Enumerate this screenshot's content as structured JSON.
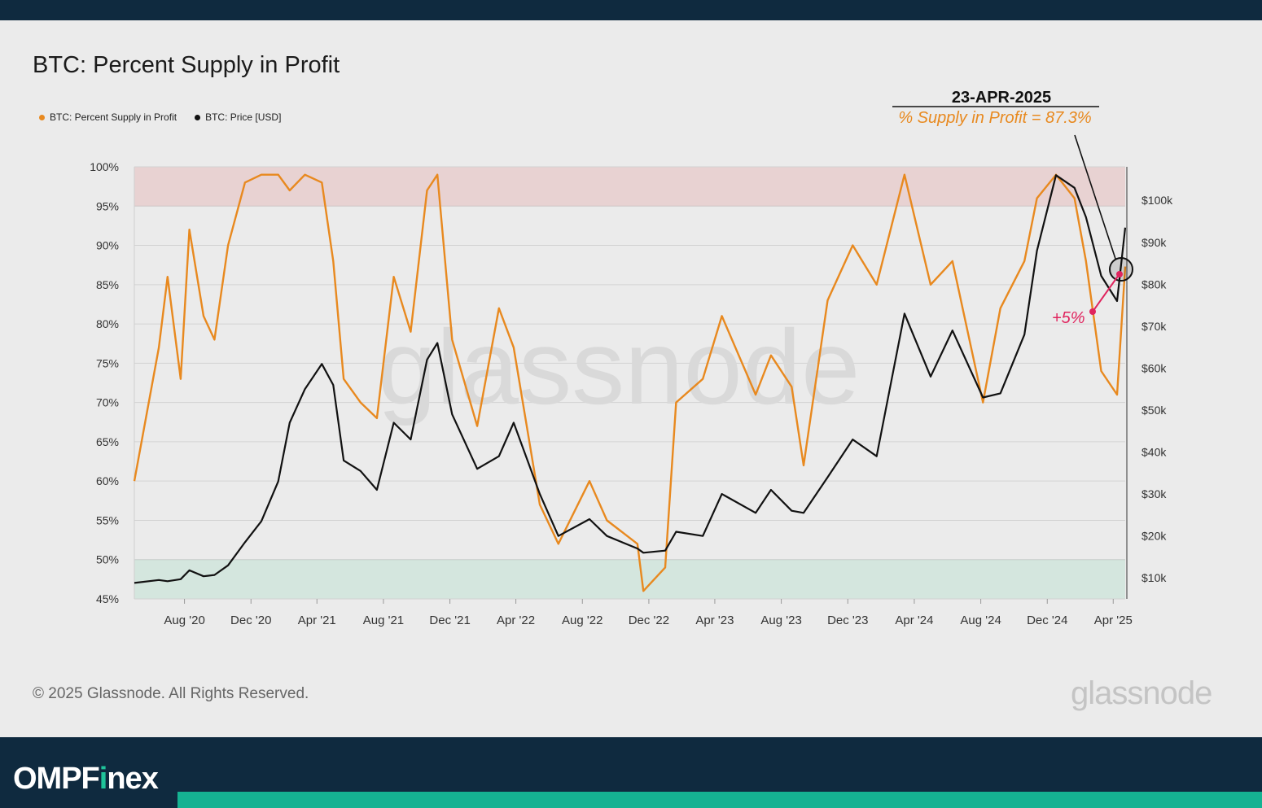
{
  "chart_data": {
    "type": "line",
    "title": "BTC: Percent Supply in Profit",
    "legend": [
      {
        "name": "BTC: Percent Supply in Profit",
        "color": "#e8891f"
      },
      {
        "name": "BTC: Price [USD]",
        "color": "#111111"
      }
    ],
    "x_ticks": [
      "Aug '20",
      "Dec '20",
      "Apr '21",
      "Aug '21",
      "Dec '21",
      "Apr '22",
      "Aug '22",
      "Dec '22",
      "Apr '23",
      "Aug '23",
      "Dec '23",
      "Apr '24",
      "Aug '24",
      "Dec '24",
      "Apr '25"
    ],
    "x_range": [
      "2020-05-01",
      "2025-04-23"
    ],
    "y_left": {
      "ticks": [
        "100%",
        "95%",
        "90%",
        "85%",
        "80%",
        "75%",
        "70%",
        "65%",
        "60%",
        "55%",
        "50%",
        "45%"
      ],
      "range": [
        45,
        100
      ]
    },
    "y_right": {
      "ticks": [
        "$100k",
        "$90k",
        "$80k",
        "$70k",
        "$60k",
        "$50k",
        "$40k",
        "$30k",
        "$20k",
        "$10k"
      ],
      "range": [
        5000,
        108000
      ]
    },
    "bands": [
      {
        "from": 95,
        "to": 100,
        "color": "#e8d2d2"
      },
      {
        "from": 45,
        "to": 50,
        "color": "#d4e6de"
      }
    ],
    "grid": true,
    "legend_placement": "top-left",
    "series": [
      {
        "name": "BTC: Percent Supply in Profit",
        "axis": "left",
        "color": "#e8891f",
        "x": [
          "2020-05-01",
          "2020-06-15",
          "2020-07-01",
          "2020-07-25",
          "2020-08-10",
          "2020-09-05",
          "2020-09-25",
          "2020-10-20",
          "2020-11-20",
          "2020-12-20",
          "2021-01-20",
          "2021-02-10",
          "2021-03-10",
          "2021-04-10",
          "2021-05-01",
          "2021-05-20",
          "2021-06-20",
          "2021-07-20",
          "2021-08-20",
          "2021-09-20",
          "2021-10-20",
          "2021-11-08",
          "2021-12-05",
          "2022-01-20",
          "2022-03-01",
          "2022-03-28",
          "2022-05-15",
          "2022-06-18",
          "2022-08-14",
          "2022-09-15",
          "2022-11-10",
          "2022-11-21",
          "2022-12-31",
          "2023-01-20",
          "2023-03-10",
          "2023-04-14",
          "2023-06-15",
          "2023-07-13",
          "2023-08-20",
          "2023-09-11",
          "2023-10-25",
          "2023-12-10",
          "2024-01-23",
          "2024-03-14",
          "2024-05-01",
          "2024-06-10",
          "2024-08-05",
          "2024-09-06",
          "2024-10-20",
          "2024-11-12",
          "2024-12-17",
          "2025-01-20",
          "2025-02-10",
          "2025-03-10",
          "2025-04-08",
          "2025-04-23"
        ],
        "values": [
          60,
          77,
          86,
          73,
          92,
          81,
          78,
          90,
          98,
          99,
          99,
          97,
          99,
          98,
          88,
          73,
          70,
          68,
          86,
          79,
          97,
          99,
          78,
          67,
          82,
          77,
          57,
          52,
          60,
          55,
          52,
          46,
          49,
          70,
          73,
          81,
          71,
          76,
          72,
          62,
          83,
          90,
          85,
          99,
          85,
          88,
          70,
          82,
          88,
          96,
          99,
          96,
          88,
          74,
          71,
          87.3
        ]
      },
      {
        "name": "BTC: Price [USD]",
        "axis": "right",
        "color": "#111111",
        "x": [
          "2020-05-01",
          "2020-06-15",
          "2020-07-01",
          "2020-07-25",
          "2020-08-10",
          "2020-09-05",
          "2020-09-25",
          "2020-10-20",
          "2020-11-20",
          "2020-12-20",
          "2021-01-20",
          "2021-02-10",
          "2021-03-10",
          "2021-04-10",
          "2021-05-01",
          "2021-05-20",
          "2021-06-20",
          "2021-07-20",
          "2021-08-20",
          "2021-09-20",
          "2021-10-20",
          "2021-11-08",
          "2021-12-05",
          "2022-01-20",
          "2022-03-01",
          "2022-03-28",
          "2022-05-15",
          "2022-06-18",
          "2022-08-14",
          "2022-09-15",
          "2022-11-10",
          "2022-11-21",
          "2022-12-31",
          "2023-01-20",
          "2023-03-10",
          "2023-04-14",
          "2023-06-15",
          "2023-07-13",
          "2023-08-20",
          "2023-09-11",
          "2023-10-25",
          "2023-12-10",
          "2024-01-23",
          "2024-03-14",
          "2024-05-01",
          "2024-06-10",
          "2024-08-05",
          "2024-09-06",
          "2024-10-20",
          "2024-11-12",
          "2024-12-17",
          "2025-01-20",
          "2025-02-10",
          "2025-03-10",
          "2025-04-08",
          "2025-04-23"
        ],
        "values": [
          8800,
          9500,
          9200,
          9700,
          11800,
          10400,
          10700,
          13000,
          18500,
          23500,
          33000,
          47000,
          55000,
          61000,
          56000,
          38000,
          35500,
          31000,
          47000,
          43000,
          62000,
          66000,
          49000,
          36000,
          39000,
          47000,
          30000,
          20000,
          24000,
          20000,
          17000,
          16000,
          16500,
          21000,
          20000,
          30000,
          25500,
          31000,
          26000,
          25500,
          34000,
          43000,
          39000,
          73000,
          58000,
          69000,
          53000,
          54000,
          68000,
          88000,
          106000,
          103000,
          96000,
          82000,
          76000,
          93500
        ]
      }
    ],
    "annotations": {
      "date_label": "23-APR-2025",
      "value_label": "% Supply in Profit = 87.3%",
      "change_label": "+5%"
    }
  },
  "watermark": "glassnode",
  "footer": {
    "copyright": "© 2025 Glassnode. All Rights Reserved.",
    "brand": "glassnode"
  },
  "banner": {
    "brand_prefix": "OMPF",
    "brand_i": "i",
    "brand_suffix": "nex"
  },
  "colors": {
    "orange": "#e8891f",
    "black": "#111111",
    "pink": "#e0245e",
    "navy": "#0f2a3f",
    "teal": "#15b292"
  }
}
